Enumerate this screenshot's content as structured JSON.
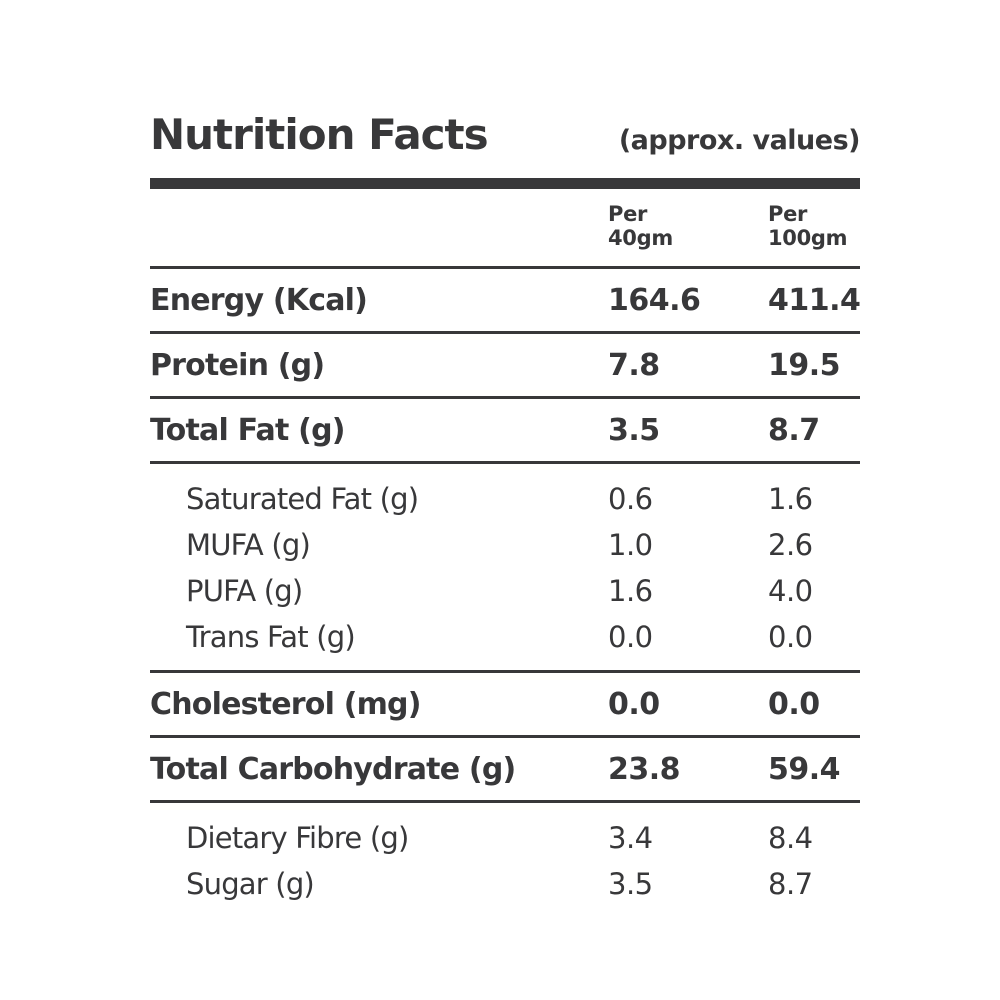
{
  "colors": {
    "ink": "#38383a",
    "background": "#ffffff"
  },
  "header": {
    "title": "Nutrition Facts",
    "subtitle": "(approx. values)"
  },
  "columns": [
    {
      "line1": "Per",
      "line2": "40gm"
    },
    {
      "line1": "Per",
      "line2": "100gm"
    }
  ],
  "rows": [
    {
      "label": "Energy (Kcal)",
      "per40": "164.6",
      "per100": "411.4",
      "emphasis": "bold"
    },
    {
      "label": "Protein (g)",
      "per40": "7.8",
      "per100": "19.5",
      "emphasis": "bold"
    },
    {
      "label": "Total Fat (g)",
      "per40": "3.5",
      "per100": "8.7",
      "emphasis": "bold"
    },
    {
      "label": "Saturated Fat (g)",
      "per40": "0.6",
      "per100": "1.6",
      "emphasis": "sub"
    },
    {
      "label": "MUFA (g)",
      "per40": "1.0",
      "per100": "2.6",
      "emphasis": "sub"
    },
    {
      "label": "PUFA (g)",
      "per40": "1.6",
      "per100": "4.0",
      "emphasis": "sub"
    },
    {
      "label": "Trans Fat (g)",
      "per40": "0.0",
      "per100": "0.0",
      "emphasis": "sub"
    },
    {
      "label": "Cholesterol (mg)",
      "per40": "0.0",
      "per100": "0.0",
      "emphasis": "bold"
    },
    {
      "label": "Total Carbohydrate (g)",
      "per40": "23.8",
      "per100": "59.4",
      "emphasis": "bold"
    },
    {
      "label": "Dietary Fibre (g)",
      "per40": "3.4",
      "per100": "8.4",
      "emphasis": "sub"
    },
    {
      "label": "Sugar (g)",
      "per40": "3.5",
      "per100": "8.7",
      "emphasis": "sub"
    }
  ]
}
